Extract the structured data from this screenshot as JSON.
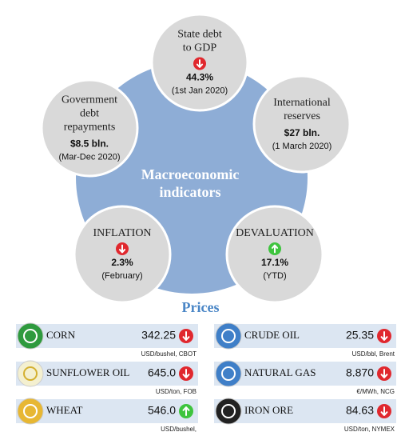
{
  "indicators": {
    "center_title": [
      "Macroeconomic",
      "indicators"
    ],
    "items": [
      {
        "lines": [
          "State debt",
          "to GDP"
        ],
        "trend": "down",
        "value": "44.3%",
        "note": "(1st Jan 2020)"
      },
      {
        "lines": [
          "International",
          "reserves"
        ],
        "value": "$27 bln.",
        "note": "(1 March 2020)"
      },
      {
        "lines": [
          "Government",
          "debt",
          "repayments"
        ],
        "value": "$8.5 bln.",
        "note": "(Mar-Dec 2020)"
      },
      {
        "lines": [
          "INFLATION"
        ],
        "trend": "down",
        "value": "2.3%",
        "note": "(February)"
      },
      {
        "lines": [
          "DEVALUATION"
        ],
        "trend": "up",
        "value": "17.1%",
        "note": "(YTD)"
      }
    ]
  },
  "prices": {
    "title": "Prices",
    "items": [
      {
        "name": "CORN",
        "value": "342.25",
        "trend": "down",
        "unit": "USD/bushel,  CBOT"
      },
      {
        "name": "SUNFLOWER  OIL",
        "value": "645.0",
        "trend": "down",
        "unit": "USD/ton,  FOB"
      },
      {
        "name": "WHEAT",
        "value": "546.0",
        "trend": "up",
        "unit": "USD/bushel,"
      },
      {
        "name": "CRUDE  OIL",
        "value": "25.35",
        "trend": "down",
        "unit": "USD/bbl,  Brent"
      },
      {
        "name": "NATURAL GAS",
        "value": "8.870",
        "trend": "down",
        "unit": "€/MWh,  NCG"
      },
      {
        "name": "IRON ORE",
        "value": "84.63",
        "trend": "down",
        "unit": "USD/ton,  NYMEX"
      }
    ]
  }
}
